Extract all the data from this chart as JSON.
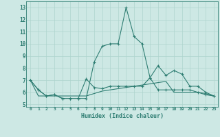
{
  "xlabel": "Humidex (Indice chaleur)",
  "x": [
    0,
    1,
    2,
    3,
    4,
    5,
    6,
    7,
    8,
    9,
    10,
    11,
    12,
    13,
    14,
    15,
    16,
    17,
    18,
    19,
    20,
    21,
    22,
    23
  ],
  "line1": [
    7.0,
    6.2,
    5.7,
    5.8,
    5.5,
    5.5,
    5.5,
    5.5,
    8.5,
    9.8,
    10.0,
    10.0,
    13.0,
    10.6,
    10.0,
    7.2,
    8.2,
    7.4,
    7.8,
    7.5,
    6.5,
    6.5,
    6.0,
    5.7
  ],
  "line2": [
    7.0,
    6.2,
    5.7,
    5.8,
    5.5,
    5.5,
    5.5,
    7.1,
    6.4,
    6.3,
    6.5,
    6.5,
    6.5,
    6.5,
    6.5,
    7.2,
    6.2,
    6.2,
    6.2,
    6.2,
    6.2,
    6.0,
    5.8,
    5.7
  ],
  "line3": [
    7.0,
    5.7,
    5.7,
    5.7,
    5.7,
    5.7,
    5.7,
    5.7,
    5.9,
    6.1,
    6.2,
    6.3,
    6.4,
    6.5,
    6.6,
    6.7,
    6.8,
    6.9,
    6.0,
    6.0,
    6.0,
    6.0,
    5.9,
    5.7
  ],
  "bg_color": "#cde8e4",
  "line_color": "#2e7d72",
  "grid_color": "#aed4ce",
  "ylim": [
    4.8,
    13.5
  ],
  "yticks": [
    5,
    6,
    7,
    8,
    9,
    10,
    11,
    12,
    13
  ],
  "xlim": [
    -0.5,
    23.5
  ],
  "figsize": [
    3.2,
    2.0
  ],
  "dpi": 100
}
